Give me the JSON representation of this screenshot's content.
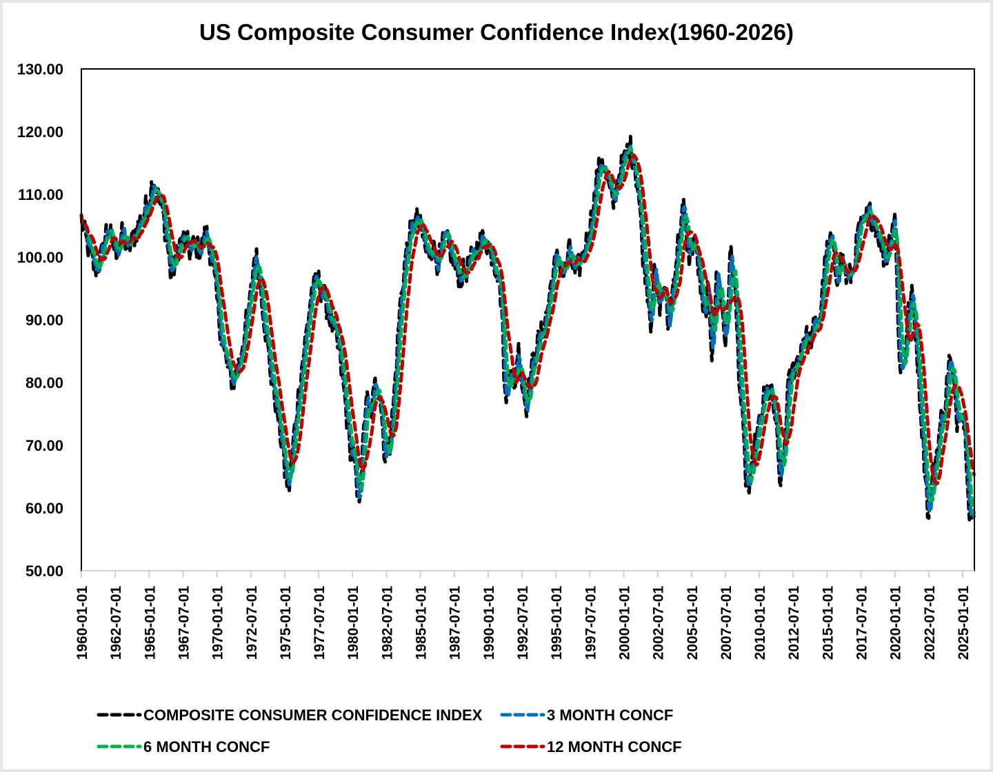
{
  "chart_data": {
    "type": "line",
    "title": "US Composite Consumer Confidence Index(1960-2026)",
    "xlabel": "",
    "ylabel": "",
    "ylim": [
      50,
      130
    ],
    "y_ticks": [
      "130.00",
      "120.00",
      "110.00",
      "100.00",
      "90.00",
      "80.00",
      "70.00",
      "60.00",
      "50.00"
    ],
    "x_range": [
      "1960-01-01",
      "2025-11-01"
    ],
    "x_tick_labels": [
      "1960-01-01",
      "1962-07-01",
      "1965-01-01",
      "1967-07-01",
      "1970-01-01",
      "1972-07-01",
      "1975-01-01",
      "1977-07-01",
      "1980-01-01",
      "1982-07-01",
      "1985-01-01",
      "1987-07-01",
      "1990-01-01",
      "1992-07-01",
      "1995-01-01",
      "1997-07-01",
      "2000-01-01",
      "2002-07-01",
      "2005-01-01",
      "2007-07-01",
      "2010-01-01",
      "2012-07-01",
      "2015-01-01",
      "2017-07-01",
      "2020-01-01",
      "2022-07-01",
      "2025-01-01"
    ],
    "grid": false,
    "legend_position": "bottom",
    "series": [
      {
        "name": "COMPOSITE CONSUMER CONFIDENCE INDEX",
        "color": "#000000",
        "style": "dashed",
        "derived": "raw monthly index"
      },
      {
        "name": "3 MONTH CONCF",
        "color": "#0070C0",
        "style": "dashed",
        "derived": "3-month moving average"
      },
      {
        "name": "6 MONTH CONCF",
        "color": "#00B050",
        "style": "dashed",
        "derived": "6-month moving average"
      },
      {
        "name": "12 MONTH CONCF",
        "color": "#C00000",
        "style": "dashed",
        "derived": "12-month moving average"
      }
    ],
    "composite_anchor_points": {
      "x_year": [
        1960.0,
        1960.3,
        1960.7,
        1961.0,
        1961.3,
        1961.6,
        1961.9,
        1962.2,
        1962.5,
        1962.8,
        1963.1,
        1963.4,
        1963.8,
        1964.2,
        1964.6,
        1965.0,
        1965.3,
        1965.6,
        1966.0,
        1966.3,
        1966.6,
        1966.9,
        1967.2,
        1967.6,
        1968.0,
        1968.4,
        1968.8,
        1969.2,
        1969.6,
        1970.0,
        1970.4,
        1970.8,
        1971.2,
        1971.6,
        1972.0,
        1972.4,
        1972.8,
        1973.2,
        1973.6,
        1974.0,
        1974.4,
        1974.8,
        1975.0,
        1975.3,
        1975.7,
        1976.1,
        1976.6,
        1977.0,
        1977.5,
        1978.0,
        1978.5,
        1979.0,
        1979.4,
        1979.8,
        1980.1,
        1980.4,
        1980.7,
        1981.0,
        1981.3,
        1981.7,
        1982.0,
        1982.4,
        1982.8,
        1983.1,
        1983.5,
        1983.9,
        1984.3,
        1984.7,
        1985.1,
        1985.5,
        1985.9,
        1986.3,
        1986.8,
        1987.2,
        1987.6,
        1988.0,
        1988.4,
        1988.9,
        1989.3,
        1989.8,
        1990.2,
        1990.5,
        1990.8,
        1991.0,
        1991.3,
        1991.6,
        1991.9,
        1992.2,
        1992.5,
        1992.8,
        1993.2,
        1993.6,
        1994.0,
        1994.4,
        1994.8,
        1995.2,
        1995.6,
        1996.0,
        1996.4,
        1996.8,
        1997.2,
        1997.6,
        1998.0,
        1998.4,
        1998.8,
        1999.2,
        1999.6,
        2000.0,
        2000.4,
        2000.8,
        2001.1,
        2001.4,
        2001.7,
        2002.0,
        2002.3,
        2002.6,
        2003.0,
        2003.3,
        2003.6,
        2004.0,
        2004.4,
        2004.8,
        2005.2,
        2005.6,
        2005.9,
        2006.2,
        2006.5,
        2006.9,
        2007.2,
        2007.5,
        2007.9,
        2008.2,
        2008.5,
        2008.8,
        2009.0,
        2009.3,
        2009.6,
        2010.0,
        2010.4,
        2010.8,
        2011.2,
        2011.5,
        2011.8,
        2012.1,
        2012.5,
        2012.9,
        2013.3,
        2013.7,
        2014.1,
        2014.5,
        2014.9,
        2015.3,
        2015.7,
        2016.1,
        2016.5,
        2016.9,
        2017.3,
        2017.7,
        2018.1,
        2018.5,
        2018.9,
        2019.3,
        2019.7,
        2020.0,
        2020.2,
        2020.4,
        2020.7,
        2021.0,
        2021.3,
        2021.6,
        2021.9,
        2022.2,
        2022.5,
        2022.8,
        2023.1,
        2023.4,
        2023.7,
        2024.0,
        2024.3,
        2024.6,
        2024.9,
        2025.2,
        2025.5,
        2025.85
      ],
      "value": [
        106,
        103,
        100,
        98,
        99,
        101,
        105,
        103,
        101,
        102,
        104,
        101,
        103,
        105,
        107,
        109,
        113,
        110,
        107,
        103,
        97,
        99,
        102,
        103,
        101,
        102,
        101,
        104,
        100,
        93,
        86,
        82,
        80,
        83,
        88,
        92,
        101,
        96,
        88,
        81,
        76,
        70,
        66,
        63,
        72,
        80,
        88,
        95,
        96,
        93,
        89,
        85,
        78,
        70,
        68,
        60,
        67,
        78,
        74,
        80,
        79,
        68,
        71,
        79,
        92,
        100,
        104,
        106,
        104,
        100,
        102,
        99,
        103,
        101,
        98,
        97,
        98,
        100,
        102,
        103,
        101,
        99,
        97,
        92,
        75,
        84,
        78,
        86,
        80,
        76,
        82,
        86,
        88,
        92,
        98,
        100,
        97,
        101,
        97,
        99,
        102,
        106,
        112,
        116,
        112,
        108,
        113,
        115,
        118,
        115,
        110,
        101,
        96,
        90,
        98,
        92,
        96,
        88,
        95,
        102,
        108,
        100,
        103,
        97,
        89,
        95,
        85,
        98,
        93,
        86,
        101,
        95,
        82,
        72,
        65,
        62,
        69,
        73,
        78,
        79,
        74,
        64,
        68,
        79,
        82,
        84,
        88,
        86,
        89,
        91,
        100,
        103,
        97,
        100,
        96,
        98,
        104,
        105,
        107,
        106,
        103,
        99,
        104,
        107,
        93,
        81,
        84,
        91,
        94,
        86,
        76,
        67,
        58,
        65,
        69,
        74,
        76,
        84,
        80,
        74,
        77,
        72,
        60,
        57
      ]
    }
  },
  "legend": {
    "items": [
      {
        "label": "COMPOSITE CONSUMER CONFIDENCE INDEX",
        "color": "#000000"
      },
      {
        "label": "3 MONTH CONCF",
        "color": "#0070C0"
      },
      {
        "label": "6 MONTH CONCF",
        "color": "#00B050"
      },
      {
        "label": "12 MONTH CONCF",
        "color": "#C00000"
      }
    ]
  }
}
